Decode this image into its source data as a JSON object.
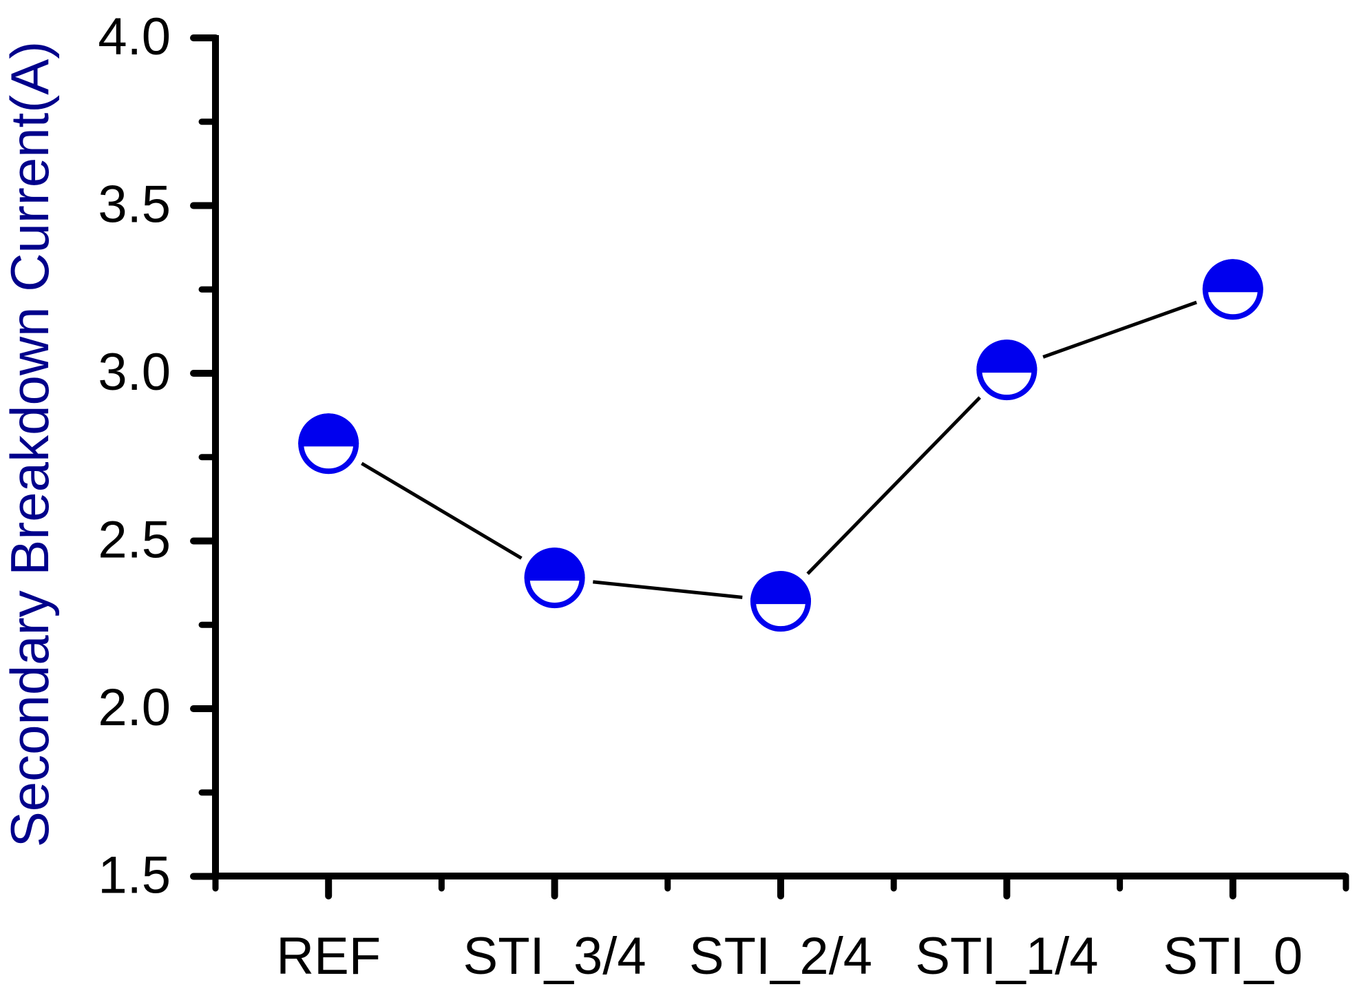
{
  "figure": {
    "background": "#FFFFFF"
  },
  "chart_data": {
    "type": "line",
    "categories": [
      "REF",
      "STI_3/4",
      "STI_2/4",
      "STI_1/4",
      "STI_0"
    ],
    "series": [
      {
        "name": "Secondary Breakdown Current",
        "values": [
          2.79,
          2.39,
          2.32,
          3.01,
          3.25
        ]
      }
    ],
    "title": "",
    "xlabel": "",
    "ylabel": "Secondary Breakdown Current(A)",
    "ylim": [
      1.5,
      4.0
    ],
    "y_major_step": 0.5,
    "y_minor_step": 0.25,
    "y_tick_labels": [
      "1.5",
      "2.0",
      "2.5",
      "3.0",
      "3.5",
      "4.0"
    ],
    "grid": false,
    "legend": false,
    "marker": {
      "shape": "circle-top-half-filled",
      "fill_color": "#0000EE",
      "stroke_color": "#0000EE"
    },
    "line": {
      "color": "#000000"
    },
    "axis": {
      "color": "#000000",
      "tick_label_color": "#000000",
      "ylabel_color": "#00008B"
    }
  }
}
